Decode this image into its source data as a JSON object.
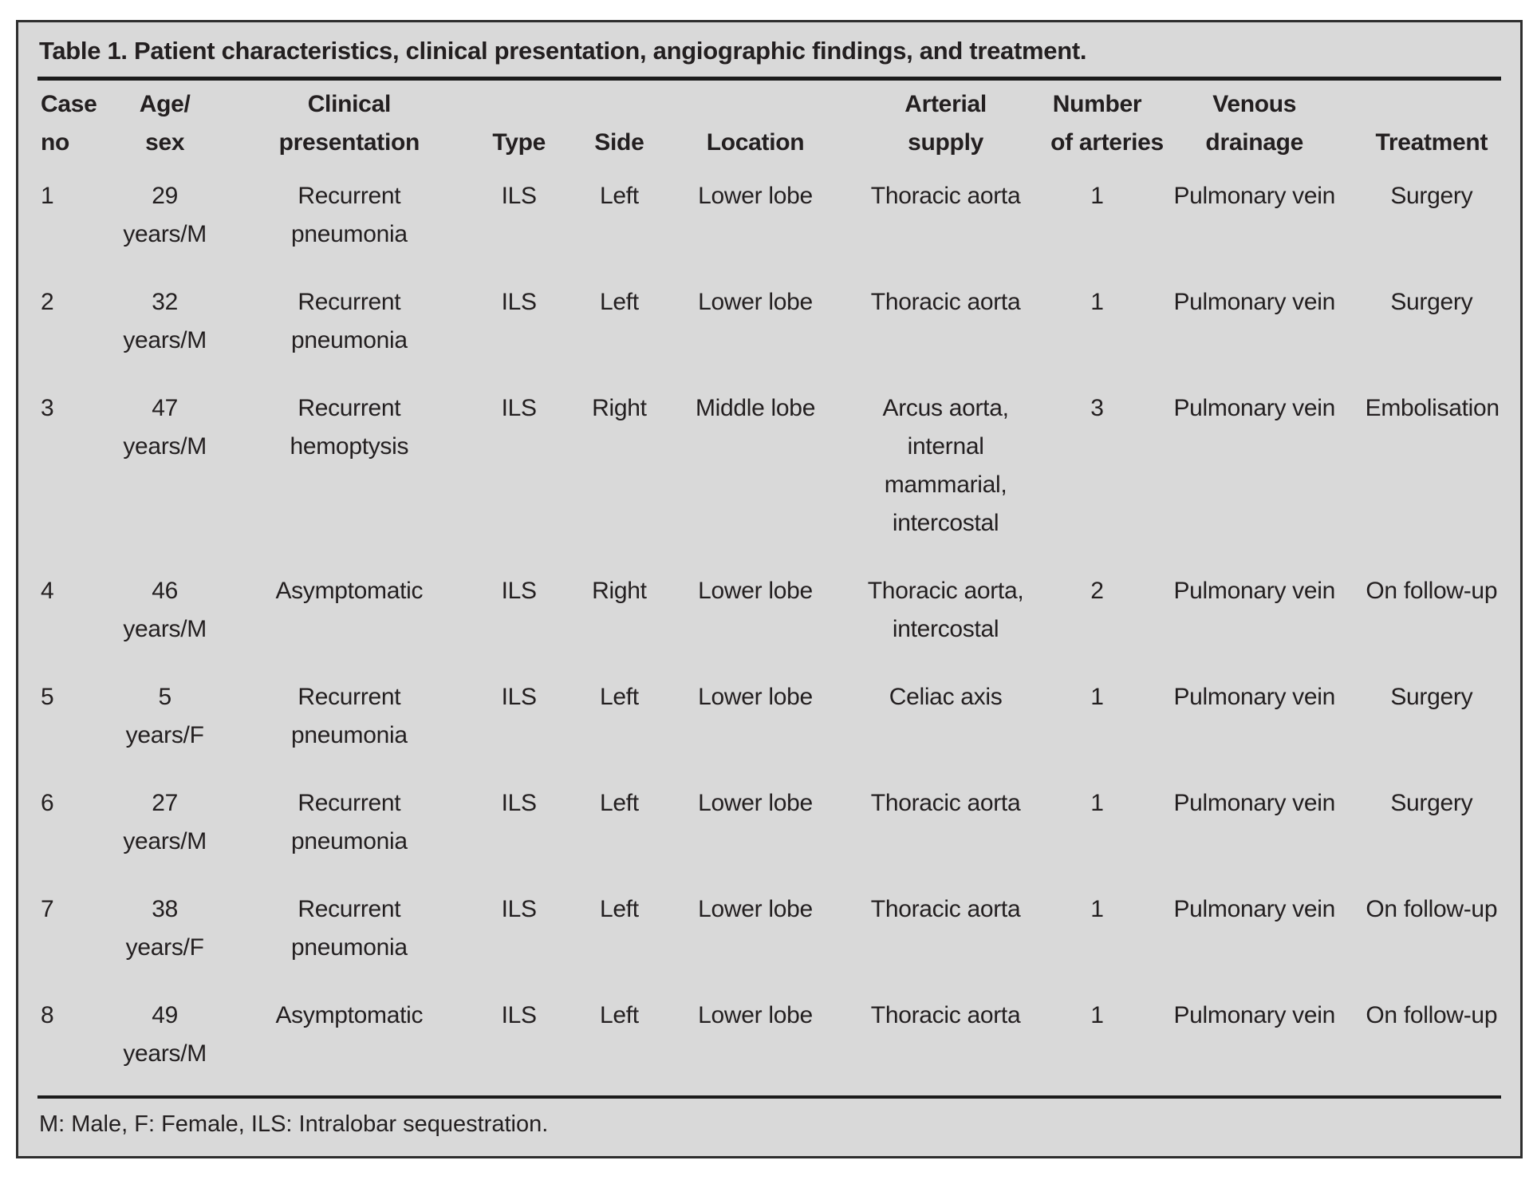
{
  "title": "Table 1. Patient characteristics, clinical presentation, angiographic findings, and treatment.",
  "footnote": "M: Male, F: Female, ILS: Intralobar sequestration.",
  "colors": {
    "page_background": "#ffffff",
    "table_background": "#d9d9d9",
    "text": "#231f20",
    "border": "#2e2e2e",
    "rule": "#1b1b1b"
  },
  "table": {
    "columns": [
      {
        "lines": [
          "Case",
          "no"
        ],
        "align": "left",
        "width": "4.1%"
      },
      {
        "lines": [
          "Age/",
          "sex"
        ],
        "align": "center",
        "width": "9.2%"
      },
      {
        "lines": [
          "Clinical",
          "presentation"
        ],
        "align": "center",
        "width": "16.0%"
      },
      {
        "lines": [
          "",
          "Type"
        ],
        "align": "center",
        "width": "7.2%"
      },
      {
        "lines": [
          "",
          "Side"
        ],
        "align": "center",
        "width": "6.5%"
      },
      {
        "lines": [
          "",
          "Location"
        ],
        "align": "center",
        "width": "12.1%"
      },
      {
        "lines": [
          "Arterial",
          "supply"
        ],
        "align": "center",
        "width": "13.9%"
      },
      {
        "lines": [
          "Number",
          "of arteries"
        ],
        "align": "center",
        "width": "6.8%"
      },
      {
        "lines": [
          "Venous",
          "drainage"
        ],
        "align": "center",
        "width": "14.7%"
      },
      {
        "lines": [
          "",
          "Treatment"
        ],
        "align": "center",
        "width": "9.5%"
      }
    ],
    "rows": [
      [
        [
          "1"
        ],
        [
          "29",
          "years/M"
        ],
        [
          "Recurrent",
          "pneumonia"
        ],
        [
          "ILS"
        ],
        [
          "Left"
        ],
        [
          "Lower lobe"
        ],
        [
          "Thoracic aorta"
        ],
        [
          "1"
        ],
        [
          "Pulmonary vein"
        ],
        [
          "Surgery"
        ]
      ],
      [
        [
          "2"
        ],
        [
          "32",
          "years/M"
        ],
        [
          "Recurrent",
          "pneumonia"
        ],
        [
          "ILS"
        ],
        [
          "Left"
        ],
        [
          "Lower lobe"
        ],
        [
          "Thoracic aorta"
        ],
        [
          "1"
        ],
        [
          "Pulmonary vein"
        ],
        [
          "Surgery"
        ]
      ],
      [
        [
          "3"
        ],
        [
          "47",
          "years/M"
        ],
        [
          "Recurrent",
          "hemoptysis"
        ],
        [
          "ILS"
        ],
        [
          "Right"
        ],
        [
          "Middle lobe"
        ],
        [
          "Arcus aorta,",
          "internal",
          "mammarial,",
          "intercostal"
        ],
        [
          "3"
        ],
        [
          "Pulmonary vein"
        ],
        [
          "Embolisation"
        ]
      ],
      [
        [
          "4"
        ],
        [
          "46",
          "years/M"
        ],
        [
          "Asymptomatic"
        ],
        [
          "ILS"
        ],
        [
          "Right"
        ],
        [
          "Lower lobe"
        ],
        [
          "Thoracic aorta,",
          "intercostal"
        ],
        [
          "2"
        ],
        [
          "Pulmonary vein"
        ],
        [
          "On follow-up"
        ]
      ],
      [
        [
          "5"
        ],
        [
          "5",
          "years/F"
        ],
        [
          "Recurrent",
          "pneumonia"
        ],
        [
          "ILS"
        ],
        [
          "Left"
        ],
        [
          "Lower lobe"
        ],
        [
          "Celiac axis"
        ],
        [
          "1"
        ],
        [
          "Pulmonary vein"
        ],
        [
          "Surgery"
        ]
      ],
      [
        [
          "6"
        ],
        [
          "27",
          "years/M"
        ],
        [
          "Recurrent",
          "pneumonia"
        ],
        [
          "ILS"
        ],
        [
          "Left"
        ],
        [
          "Lower lobe"
        ],
        [
          "Thoracic aorta"
        ],
        [
          "1"
        ],
        [
          "Pulmonary vein"
        ],
        [
          "Surgery"
        ]
      ],
      [
        [
          "7"
        ],
        [
          "38",
          "years/F"
        ],
        [
          "Recurrent",
          "pneumonia"
        ],
        [
          "ILS"
        ],
        [
          "Left"
        ],
        [
          "Lower lobe"
        ],
        [
          "Thoracic aorta"
        ],
        [
          "1"
        ],
        [
          "Pulmonary vein"
        ],
        [
          "On follow-up"
        ]
      ],
      [
        [
          "8"
        ],
        [
          "49",
          "years/M"
        ],
        [
          "Asymptomatic"
        ],
        [
          "ILS"
        ],
        [
          "Left"
        ],
        [
          "Lower lobe"
        ],
        [
          "Thoracic aorta"
        ],
        [
          "1"
        ],
        [
          "Pulmonary vein"
        ],
        [
          "On follow-up"
        ]
      ]
    ]
  }
}
